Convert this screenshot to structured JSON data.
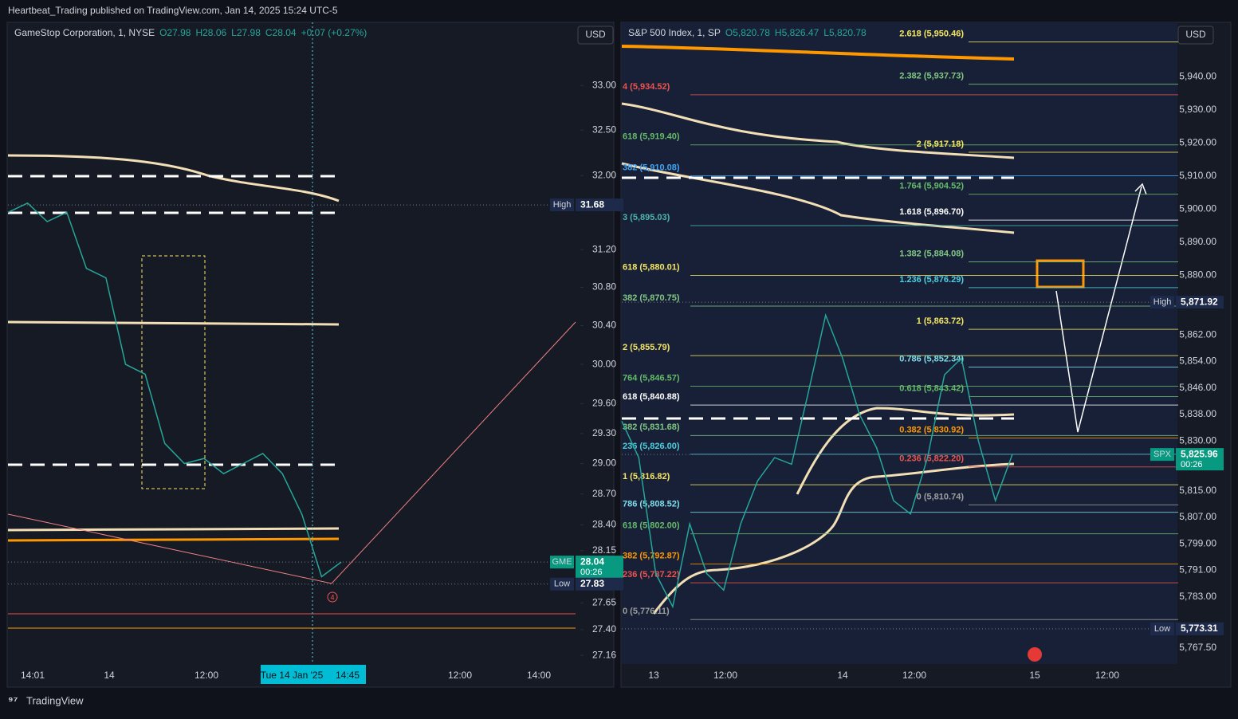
{
  "header": "Heartbeat_Trading published on TradingView.com, Jan 14, 2025 15:24 UTC-5",
  "footer": "TradingView",
  "charts": [
    {
      "type": "line",
      "currency": "USD",
      "log": true,
      "legend": {
        "name": "GameStop Corporation, 1, NYSE",
        "open": "O27.98",
        "high": "H28.06",
        "low": "L27.98",
        "close": "C28.04",
        "change": "+0.07 (+0.27%)"
      },
      "ylim": [
        27.08,
        33.72
      ],
      "yticks": [
        {
          "value": 33.0,
          "label": "33.00"
        },
        {
          "value": 32.5,
          "label": "32.50"
        },
        {
          "value": 32.0,
          "label": "32.00"
        },
        {
          "value": 31.2,
          "label": "31.20"
        },
        {
          "value": 30.8,
          "label": "30.80"
        },
        {
          "value": 30.4,
          "label": "30.40"
        },
        {
          "value": 30.0,
          "label": "30.00"
        },
        {
          "value": 29.6,
          "label": "29.60"
        },
        {
          "value": 29.3,
          "label": "29.30"
        },
        {
          "value": 29.0,
          "label": "29.00"
        },
        {
          "value": 28.7,
          "label": "28.70"
        },
        {
          "value": 28.4,
          "label": "28.40"
        },
        {
          "value": 28.15,
          "label": "28.15"
        },
        {
          "value": 27.65,
          "label": "27.65"
        },
        {
          "value": 27.4,
          "label": "27.40"
        },
        {
          "value": 27.16,
          "label": "27.16"
        }
      ],
      "categories": [
        "14:01",
        "14",
        "12:00",
        "Tue 14 Jan '25",
        "14:45",
        "12:00",
        "14:00"
      ],
      "values": [
        31.6,
        31.7,
        31.5,
        31.6,
        31.0,
        30.9,
        30.0,
        29.9,
        29.2,
        29.0,
        29.05,
        28.9,
        29.0,
        29.1,
        28.9,
        28.5,
        27.9,
        28.04
      ],
      "color": "#26a69a",
      "tags": [
        {
          "label": "High",
          "price": "31.68",
          "value": 31.68,
          "color": "#1e2a4a"
        },
        {
          "label": "GME",
          "price": "28.04",
          "extra": "00:26",
          "value": 28.04,
          "color": "#089981"
        },
        {
          "label": "Low",
          "price": "27.83",
          "value": 27.83,
          "color": "#1e2a4a"
        }
      ],
      "marker": "4"
    },
    {
      "type": "line",
      "currency": "USD",
      "log": false,
      "legend": {
        "name": "S&P 500 Index, 1, SP",
        "open": "O5,820.78",
        "high": "H5,826.47",
        "low": "L5,820.78"
      },
      "ylim": [
        5762.7,
        5956.4
      ],
      "yticks": [
        {
          "value": 5940,
          "label": "5,940.00"
        },
        {
          "value": 5930,
          "label": "5,930.00"
        },
        {
          "value": 5920,
          "label": "5,920.00"
        },
        {
          "value": 5910,
          "label": "5,910.00"
        },
        {
          "value": 5900,
          "label": "5,900.00"
        },
        {
          "value": 5890,
          "label": "5,890.00"
        },
        {
          "value": 5880,
          "label": "5,880.00"
        },
        {
          "value": 5862,
          "label": "5,862.00"
        },
        {
          "value": 5854,
          "label": "5,854.00"
        },
        {
          "value": 5846,
          "label": "5,846.00"
        },
        {
          "value": 5838,
          "label": "5,838.00"
        },
        {
          "value": 5830,
          "label": "5,830.00"
        },
        {
          "value": 5815,
          "label": "5,815.00"
        },
        {
          "value": 5807,
          "label": "5,807.00"
        },
        {
          "value": 5799,
          "label": "5,799.00"
        },
        {
          "value": 5791,
          "label": "5,791.00"
        },
        {
          "value": 5783,
          "label": "5,783.00"
        },
        {
          "value": 5767.5,
          "label": "5,767.50"
        }
      ],
      "categories": [
        "13",
        "12:00",
        "14",
        "12:00",
        "15",
        "12:00"
      ],
      "values": [
        5836,
        5825,
        5790,
        5780,
        5805,
        5790,
        5785,
        5805,
        5818,
        5825,
        5823,
        5845,
        5868,
        5855,
        5838,
        5828,
        5812,
        5808,
        5825,
        5850,
        5855,
        5830,
        5812,
        5826
      ],
      "color": "#26a69a",
      "fib_right": [
        {
          "label": "2.618 (5,950.46)",
          "value": 5950.46,
          "color": "#f5e663"
        },
        {
          "label": "2.382 (5,937.73)",
          "value": 5937.73,
          "color": "#81c784"
        },
        {
          "label": "2 (5,917.18)",
          "value": 5917.18,
          "color": "#f5e663"
        },
        {
          "label": "1.764 (5,904.52)",
          "value": 5904.52,
          "color": "#66bb6a"
        },
        {
          "label": "1.618 (5,896.70)",
          "value": 5896.7,
          "color": "#ffffff"
        },
        {
          "label": "1.382 (5,884.08)",
          "value": 5884.08,
          "color": "#81c784"
        },
        {
          "label": "1.236 (5,876.29)",
          "value": 5876.29,
          "color": "#4dd0e1"
        },
        {
          "label": "1 (5,863.72)",
          "value": 5863.72,
          "color": "#f5e663"
        },
        {
          "label": "0.786 (5,852.34)",
          "value": 5852.34,
          "color": "#80deea"
        },
        {
          "label": "0.618 (5,843.42)",
          "value": 5843.42,
          "color": "#66bb6a"
        },
        {
          "label": "0.382 (5,830.92)",
          "value": 5830.92,
          "color": "#ff9800"
        },
        {
          "label": "0.236 (5,822.20)",
          "value": 5822.2,
          "color": "#ef5350"
        },
        {
          "label": "0 (5,810.74)",
          "value": 5810.74,
          "color": "#9e9e9e"
        }
      ],
      "fib_left": [
        {
          "label": "4 (5,934.52)",
          "value": 5934.52,
          "color": "#ef5350"
        },
        {
          "label": "618 (5,919.40)",
          "value": 5919.4,
          "color": "#66bb6a"
        },
        {
          "label": "382 (5,910.08)",
          "value": 5910.08,
          "color": "#42a5f5"
        },
        {
          "label": "3 (5,895.03)",
          "value": 5895.03,
          "color": "#4db6ac"
        },
        {
          "label": "618 (5,880.01)",
          "value": 5880.01,
          "color": "#f5e663"
        },
        {
          "label": "382 (5,870.75)",
          "value": 5870.75,
          "color": "#81c784"
        },
        {
          "label": "2 (5,855.79)",
          "value": 5855.79,
          "color": "#f5e663"
        },
        {
          "label": "764 (5,846.57)",
          "value": 5846.57,
          "color": "#66bb6a"
        },
        {
          "label": "618 (5,840.88)",
          "value": 5840.88,
          "color": "#ffffff"
        },
        {
          "label": "382 (5,831.68)",
          "value": 5831.68,
          "color": "#81c784"
        },
        {
          "label": "236 (5,826.00)",
          "value": 5826.0,
          "color": "#4dd0e1"
        },
        {
          "label": "1 (5,816.82)",
          "value": 5816.82,
          "color": "#f5e663"
        },
        {
          "label": "786 (5,808.52)",
          "value": 5808.52,
          "color": "#80deea"
        },
        {
          "label": "618 (5,802.00)",
          "value": 5802.0,
          "color": "#66bb6a"
        },
        {
          "label": "382 (5,792.87)",
          "value": 5792.87,
          "color": "#ff9800"
        },
        {
          "label": "236 (5,787.22)",
          "value": 5787.22,
          "color": "#ef5350"
        },
        {
          "label": "0 (5,776.11)",
          "value": 5776.11,
          "color": "#9e9e9e"
        }
      ],
      "tags": [
        {
          "label": "High",
          "price": "5,871.92",
          "value": 5871.92,
          "color": "#1e2a4a"
        },
        {
          "label": "SPX",
          "price": "5,825.96",
          "extra": "00:26",
          "value": 5825.96,
          "color": "#089981"
        },
        {
          "label": "Low",
          "price": "5,773.31",
          "value": 5773.31,
          "color": "#1e2a4a"
        }
      ]
    }
  ]
}
